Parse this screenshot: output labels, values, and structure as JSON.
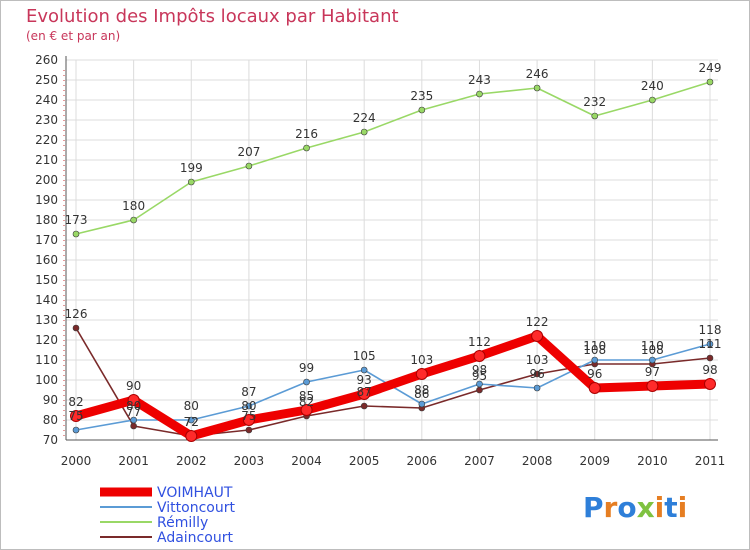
{
  "chart_data": {
    "type": "line",
    "title": "Evolution des Impôts locaux par Habitant",
    "subtitle": "(en € et par an)",
    "x": [
      "2000",
      "2001",
      "2002",
      "2003",
      "2004",
      "2005",
      "2006",
      "2007",
      "2008",
      "2009",
      "2010",
      "2011"
    ],
    "ylim": [
      70,
      260
    ],
    "yticks": [
      70,
      80,
      90,
      100,
      110,
      120,
      130,
      140,
      150,
      160,
      170,
      180,
      190,
      200,
      210,
      220,
      230,
      240,
      250,
      260
    ],
    "grid": true,
    "legend_position": "bottom-left",
    "series": [
      {
        "name": "VOIMHAUT",
        "color": "#ee0000",
        "values": [
          82,
          90,
          72,
          80,
          85,
          93,
          103,
          112,
          122,
          96,
          97,
          98
        ]
      },
      {
        "name": "Vittoncourt",
        "color": "#5b9bd5",
        "values": [
          75,
          80,
          80,
          87,
          99,
          105,
          88,
          98,
          96,
          110,
          110,
          118
        ]
      },
      {
        "name": "Rémilly",
        "color": "#99d866",
        "values": [
          173,
          180,
          199,
          207,
          216,
          224,
          235,
          243,
          246,
          232,
          240,
          249
        ]
      },
      {
        "name": "Adaincourt",
        "color": "#7a2a2a",
        "values": [
          126,
          77,
          72,
          75,
          82,
          87,
          86,
          95,
          103,
          108,
          108,
          111
        ]
      }
    ]
  },
  "logo": {
    "text": "Proxiti",
    "letter_colors": [
      "#2e7fd9",
      "#e67e22",
      "#2e7fd9",
      "#7fc241",
      "#e67e22",
      "#2e7fd9",
      "#e67e22"
    ]
  }
}
